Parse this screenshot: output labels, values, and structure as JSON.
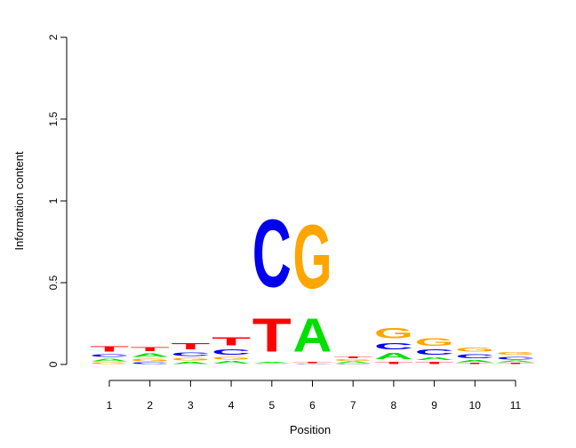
{
  "chart_data": {
    "type": "sequence-logo",
    "xlabel": "Position",
    "ylabel": "Information content",
    "ylim": [
      0,
      2
    ],
    "yticks": [
      {
        "value": 0,
        "label": "0"
      },
      {
        "value": 0.5,
        "label": "0.5"
      },
      {
        "value": 1,
        "label": "1"
      },
      {
        "value": 1.5,
        "label": "1.5"
      },
      {
        "value": 2,
        "label": "2"
      }
    ],
    "positions": [
      "1",
      "2",
      "3",
      "4",
      "5",
      "6",
      "7",
      "8",
      "9",
      "10",
      "11"
    ],
    "colors": {
      "A": "#00e000",
      "C": "#0000ee",
      "G": "#ffa500",
      "T": "#ff0000"
    },
    "stacks": [
      [
        {
          "base": "G",
          "value": 0.015
        },
        {
          "base": "A",
          "value": 0.025
        },
        {
          "base": "C",
          "value": 0.03
        },
        {
          "base": "T",
          "value": 0.05
        }
      ],
      [
        {
          "base": "C",
          "value": 0.015
        },
        {
          "base": "G",
          "value": 0.025
        },
        {
          "base": "A",
          "value": 0.035
        },
        {
          "base": "T",
          "value": 0.04
        }
      ],
      [
        {
          "base": "A",
          "value": 0.02
        },
        {
          "base": "G",
          "value": 0.025
        },
        {
          "base": "C",
          "value": 0.035
        },
        {
          "base": "T",
          "value": 0.06
        }
      ],
      [
        {
          "base": "A",
          "value": 0.025
        },
        {
          "base": "G",
          "value": 0.025
        },
        {
          "base": "C",
          "value": 0.05
        },
        {
          "base": "T",
          "value": 0.08
        }
      ],
      [
        {
          "base": "G",
          "value": 0.005
        },
        {
          "base": "A",
          "value": 0.01
        },
        {
          "base": "T",
          "value": 0.33
        },
        {
          "base": "C",
          "value": 0.66
        }
      ],
      [
        {
          "base": "C",
          "value": 0.005
        },
        {
          "base": "T",
          "value": 0.01
        },
        {
          "base": "A",
          "value": 0.33
        },
        {
          "base": "G",
          "value": 0.62
        }
      ],
      [
        {
          "base": "C",
          "value": 0.005
        },
        {
          "base": "A",
          "value": 0.015
        },
        {
          "base": "G",
          "value": 0.015
        },
        {
          "base": "T",
          "value": 0.015
        }
      ],
      [
        {
          "base": "T",
          "value": 0.02
        },
        {
          "base": "A",
          "value": 0.06
        },
        {
          "base": "C",
          "value": 0.06
        },
        {
          "base": "G",
          "value": 0.1
        }
      ],
      [
        {
          "base": "T",
          "value": 0.02
        },
        {
          "base": "A",
          "value": 0.03
        },
        {
          "base": "C",
          "value": 0.05
        },
        {
          "base": "G",
          "value": 0.07
        }
      ],
      [
        {
          "base": "T",
          "value": 0.01
        },
        {
          "base": "A",
          "value": 0.02
        },
        {
          "base": "C",
          "value": 0.04
        },
        {
          "base": "G",
          "value": 0.04
        }
      ],
      [
        {
          "base": "T",
          "value": 0.01
        },
        {
          "base": "A",
          "value": 0.015
        },
        {
          "base": "C",
          "value": 0.03
        },
        {
          "base": "G",
          "value": 0.03
        }
      ]
    ]
  }
}
